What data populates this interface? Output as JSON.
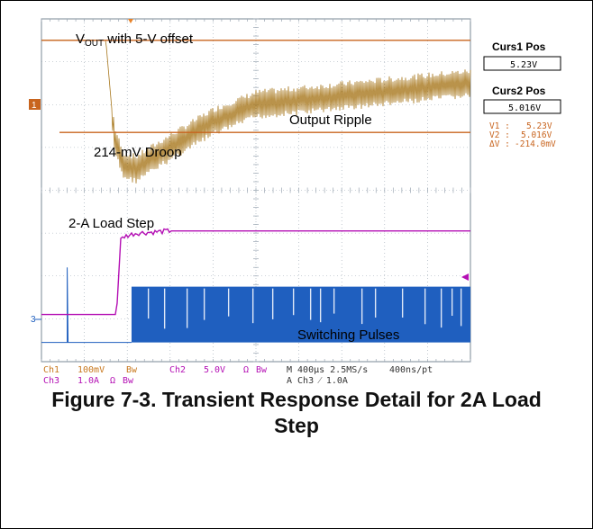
{
  "caption": {
    "line1": "Figure 7-3. Transient Response Detail for 2A Load",
    "line2": "Step"
  },
  "colors": {
    "ch1": "#c8781e",
    "ch2": "#b40fb4",
    "ch3": "#1f5fbf",
    "cursor": "#c8641e",
    "grid": "#9aa6b2"
  },
  "cursor_panel": {
    "curs1_label": "Curs1 Pos",
    "curs1_value": "5.23V",
    "curs2_label": "Curs2 Pos",
    "curs2_value": "5.016V",
    "v1_label": "V1 :",
    "v1_value": "5.23V",
    "v2_label": "V2 :",
    "v2_value": "5.016V",
    "dv_label": "ΔV :",
    "dv_value": "-214.0mV"
  },
  "annotations": {
    "vout_prefix": "V",
    "vout_sub": "OUT",
    "vout_suffix": " with 5-V offset",
    "droop": "214-mV Droop",
    "ripple": "Output Ripple",
    "load_step": "2-A Load Step",
    "switching": "Switching Pulses"
  },
  "markers": {
    "ch1": "1",
    "ch3": "3"
  },
  "readout": {
    "ch1_name": "Ch1",
    "ch1_scale": "100mV",
    "ch1_bw": "Bw",
    "ch2_name": "Ch2",
    "ch2_scale": "5.0V",
    "ch2_ohm": "Ω",
    "ch2_bw": "Bw",
    "ch3_name": "Ch3",
    "ch3_scale": "1.0A",
    "ch3_ohm": "Ω",
    "ch3_bw": "Bw",
    "timebase": "M 400µs 2.5MS/s",
    "pts": "400ns/pt",
    "trigger": "A Ch3 ⁄ 1.0A"
  },
  "chart_data": {
    "type": "line",
    "title": "",
    "x_unit": "div",
    "x_range": [
      0,
      10
    ],
    "y_range_div": [
      -4,
      4
    ],
    "grid": true,
    "divisions": {
      "x": 10,
      "y": 8
    },
    "cursors_v": [
      5.23,
      5.016
    ],
    "series": [
      {
        "name": "Ch1",
        "kind": "vout_ripple",
        "points_div": [
          [
            0,
            3.5
          ],
          [
            1.5,
            3.5
          ],
          [
            1.7,
            1.2
          ],
          [
            1.9,
            0.6
          ],
          [
            2.2,
            0.5
          ],
          [
            3,
            1.0
          ],
          [
            4,
            1.6
          ],
          [
            5,
            2.0
          ],
          [
            6,
            2.1
          ],
          [
            7,
            2.2
          ],
          [
            8,
            2.3
          ],
          [
            9,
            2.4
          ],
          [
            10,
            2.5
          ]
        ],
        "ripple_pp_div": 0.7
      },
      {
        "name": "Ch2",
        "kind": "load_step",
        "points_div": [
          [
            0,
            -2.9
          ],
          [
            1.75,
            -2.9
          ],
          [
            1.85,
            -1.1
          ],
          [
            2.2,
            -1.0
          ],
          [
            3,
            -0.95
          ],
          [
            5,
            -0.95
          ],
          [
            10,
            -0.95
          ]
        ]
      },
      {
        "name": "Ch3",
        "kind": "switching",
        "baseline_div": -3.55,
        "pulse_top_div": -2.25,
        "start_div": 2.1
      }
    ]
  }
}
